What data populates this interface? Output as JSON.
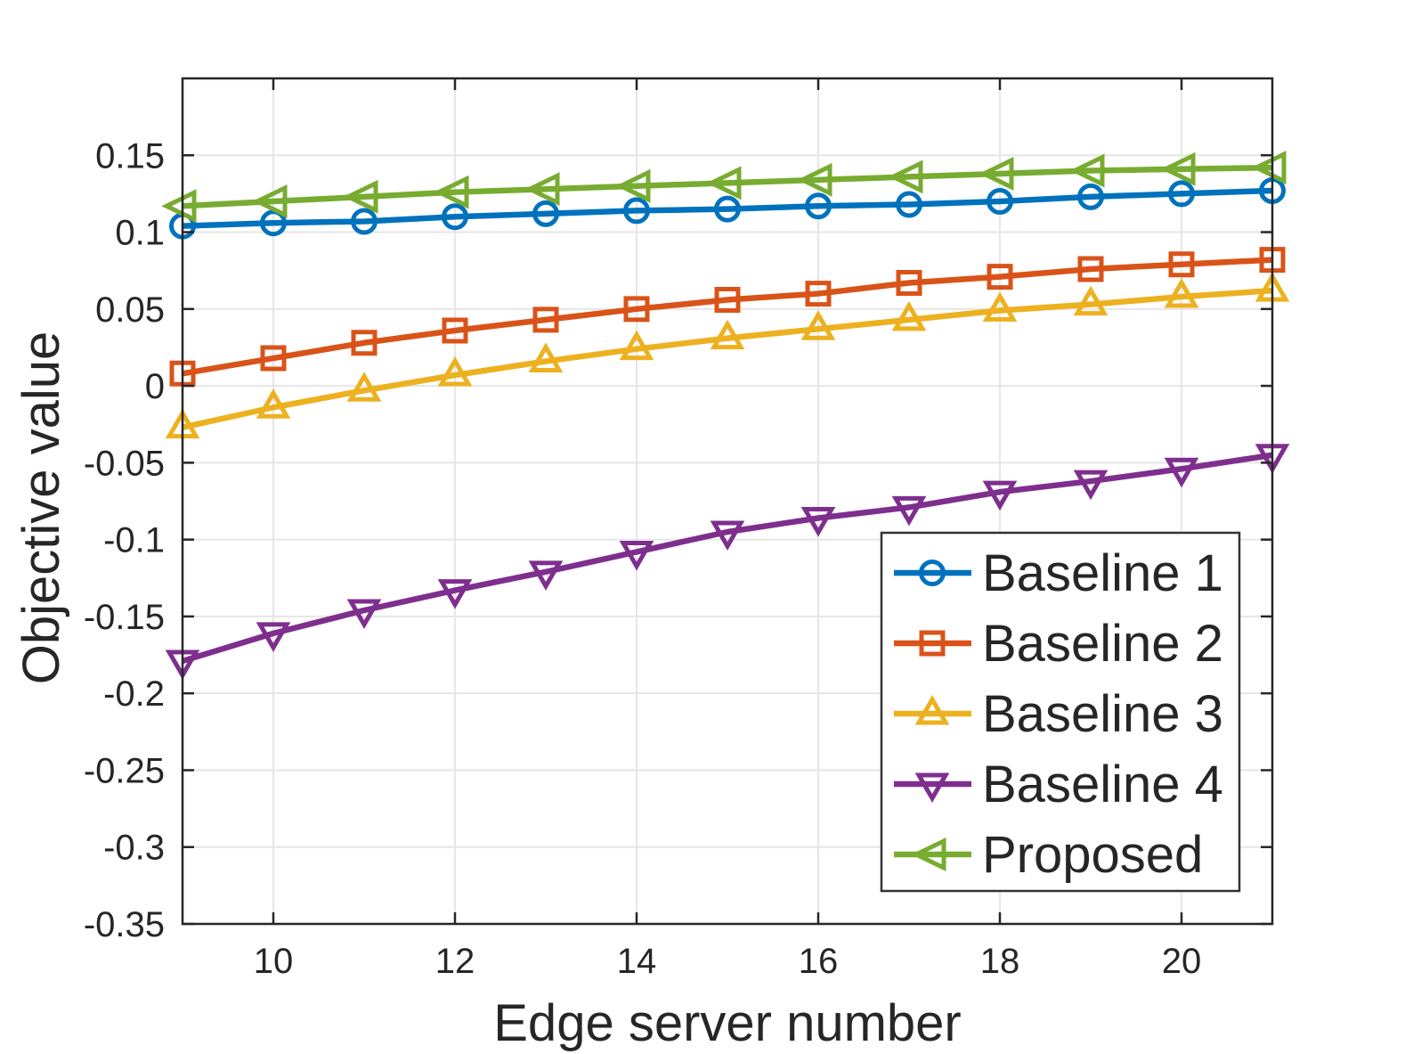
{
  "chart_data": {
    "type": "line",
    "title": "",
    "xlabel": "Edge server number",
    "ylabel": "Objective value",
    "x": [
      9,
      10,
      11,
      12,
      13,
      14,
      15,
      16,
      17,
      18,
      19,
      20,
      21
    ],
    "series": [
      {
        "name": "Baseline 1",
        "color": "#0072BD",
        "marker": "circle",
        "values": [
          0.104,
          0.106,
          0.107,
          0.11,
          0.112,
          0.114,
          0.115,
          0.117,
          0.118,
          0.12,
          0.123,
          0.125,
          0.127
        ]
      },
      {
        "name": "Baseline 2",
        "color": "#D95319",
        "marker": "square",
        "values": [
          0.008,
          0.018,
          0.028,
          0.036,
          0.043,
          0.05,
          0.056,
          0.06,
          0.067,
          0.071,
          0.076,
          0.079,
          0.082
        ]
      },
      {
        "name": "Baseline 3",
        "color": "#EDB120",
        "marker": "triangle-up",
        "values": [
          -0.027,
          -0.014,
          -0.003,
          0.007,
          0.016,
          0.024,
          0.031,
          0.037,
          0.043,
          0.049,
          0.053,
          0.058,
          0.062
        ]
      },
      {
        "name": "Baseline 4",
        "color": "#7E2F8E",
        "marker": "triangle-down",
        "values": [
          -0.179,
          -0.161,
          -0.146,
          -0.133,
          -0.121,
          -0.108,
          -0.095,
          -0.086,
          -0.079,
          -0.069,
          -0.062,
          -0.054,
          -0.045
        ]
      },
      {
        "name": "Proposed",
        "color": "#77AC30",
        "marker": "triangle-left",
        "values": [
          0.117,
          0.12,
          0.123,
          0.126,
          0.128,
          0.13,
          0.132,
          0.134,
          0.136,
          0.138,
          0.14,
          0.141,
          0.142
        ]
      }
    ],
    "xlim": [
      9,
      21
    ],
    "ylim": [
      -0.35,
      0.2
    ],
    "xticks": [
      10,
      12,
      14,
      16,
      18,
      20
    ],
    "yticks": [
      -0.35,
      -0.3,
      -0.25,
      -0.2,
      -0.15,
      -0.1,
      -0.05,
      0,
      0.05,
      0.1,
      0.15
    ],
    "grid": true,
    "legend_position": "inside-lower-right",
    "axis_color": "#262626",
    "grid_color": "#e6e6e6",
    "plot_background": "#ffffff"
  }
}
